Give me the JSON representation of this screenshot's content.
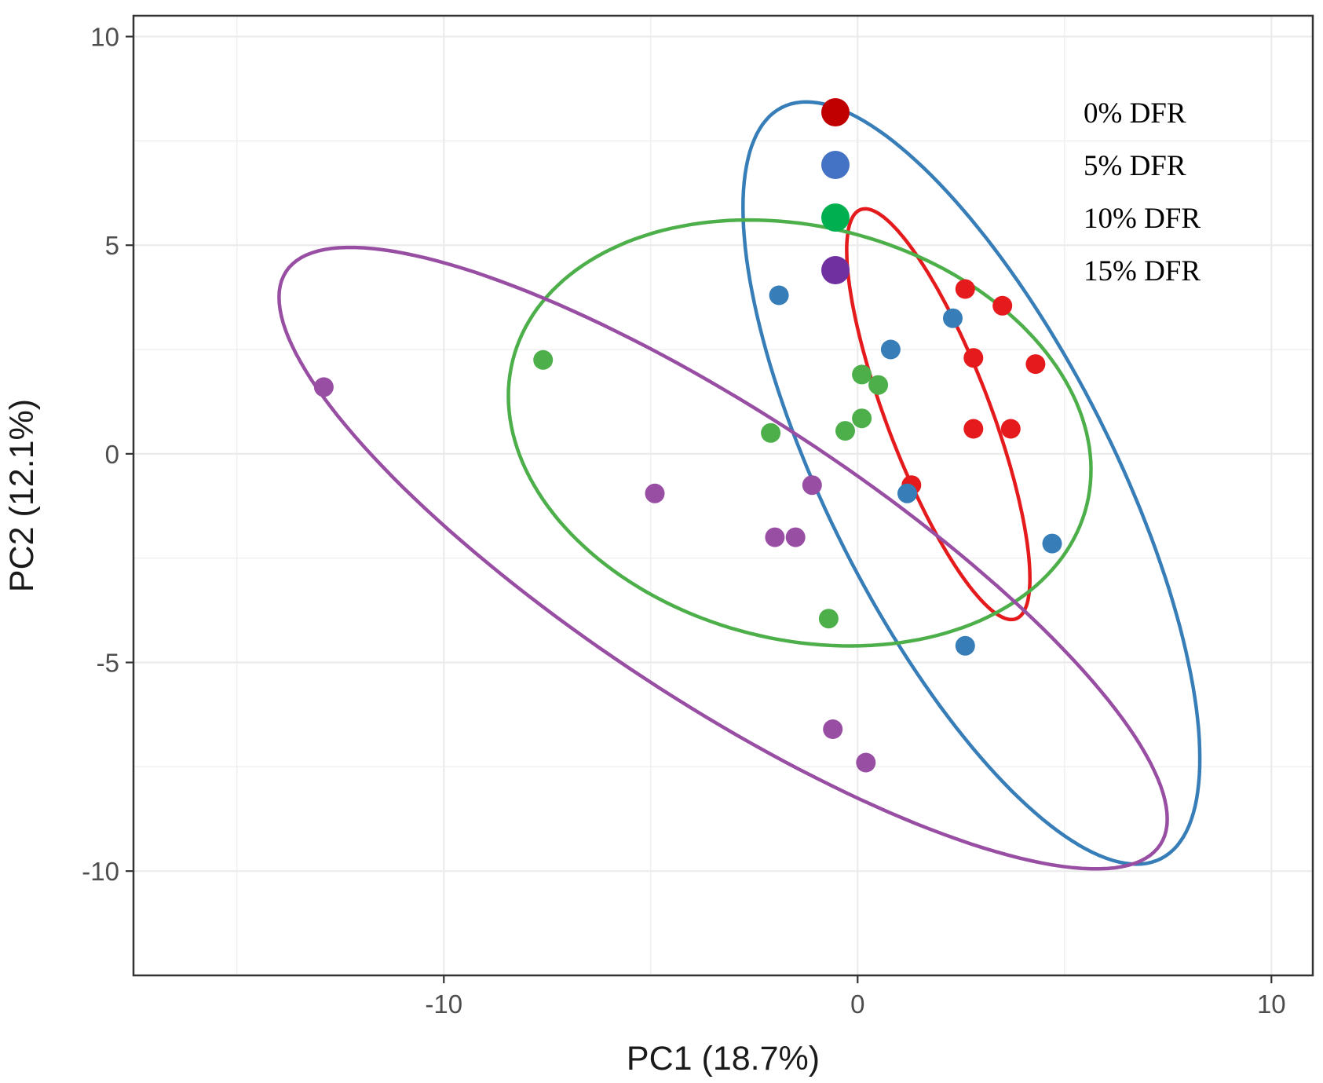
{
  "chart_data": {
    "type": "scatter",
    "title": "",
    "xlabel": "PC1 (18.7%)",
    "ylabel": "PC2 (12.1%)",
    "xlim": [
      -17.5,
      11
    ],
    "ylim": [
      -12.5,
      10.5
    ],
    "xticks": [
      -10,
      0,
      10
    ],
    "xtick_labels": [
      "-10",
      "0",
      "10"
    ],
    "yticks": [
      10,
      5,
      0,
      -5,
      -10
    ],
    "ytick_labels": [
      "10",
      "5",
      "0",
      "-5",
      "-10"
    ],
    "grid": true,
    "legend_position": "top-right",
    "series": [
      {
        "name": "0% DFR",
        "color": "#e41a1c",
        "legend_color": "#c00000",
        "points": [
          [
            2.6,
            3.95
          ],
          [
            3.5,
            3.55
          ],
          [
            2.8,
            2.3
          ],
          [
            4.3,
            2.15
          ],
          [
            2.8,
            0.6
          ],
          [
            3.7,
            0.6
          ],
          [
            1.3,
            -0.75
          ]
        ],
        "ellipse": {
          "cx": 1.95,
          "cy": 0.95,
          "rx": 5.25,
          "ry": 1.25,
          "angle_deg": -69
        }
      },
      {
        "name": "5% DFR",
        "color": "#377eb8",
        "legend_color": "#4472c4",
        "points": [
          [
            -1.9,
            3.8
          ],
          [
            2.3,
            3.25
          ],
          [
            0.8,
            2.5
          ],
          [
            1.2,
            -0.95
          ],
          [
            4.7,
            -2.15
          ],
          [
            2.6,
            -4.6
          ]
        ],
        "ellipse": {
          "cx": 2.75,
          "cy": -0.7,
          "rx": 10.1,
          "ry": 3.45,
          "angle_deg": -63
        }
      },
      {
        "name": "10% DFR",
        "color": "#4daf4a",
        "legend_color": "#00b050",
        "points": [
          [
            -7.6,
            2.25
          ],
          [
            0.1,
            1.9
          ],
          [
            0.5,
            1.65
          ],
          [
            -2.1,
            0.5
          ],
          [
            -0.3,
            0.55
          ],
          [
            0.1,
            0.85
          ],
          [
            -0.7,
            -3.95
          ]
        ],
        "ellipse": {
          "cx": -1.4,
          "cy": 0.5,
          "rx": 7.15,
          "ry": 4.95,
          "angle_deg": -14
        }
      },
      {
        "name": "15% DFR",
        "color": "#984ea3",
        "legend_color": "#7030a0",
        "points": [
          [
            -12.9,
            1.6
          ],
          [
            -4.9,
            -0.95
          ],
          [
            -1.1,
            -0.75
          ],
          [
            -2.0,
            -2.0
          ],
          [
            -1.5,
            -2.0
          ],
          [
            -0.6,
            -6.6
          ],
          [
            0.2,
            -7.4
          ]
        ],
        "ellipse": {
          "cx": -3.25,
          "cy": -2.5,
          "rx": 12.6,
          "ry": 3.45,
          "angle_deg": -33
        }
      }
    ]
  }
}
